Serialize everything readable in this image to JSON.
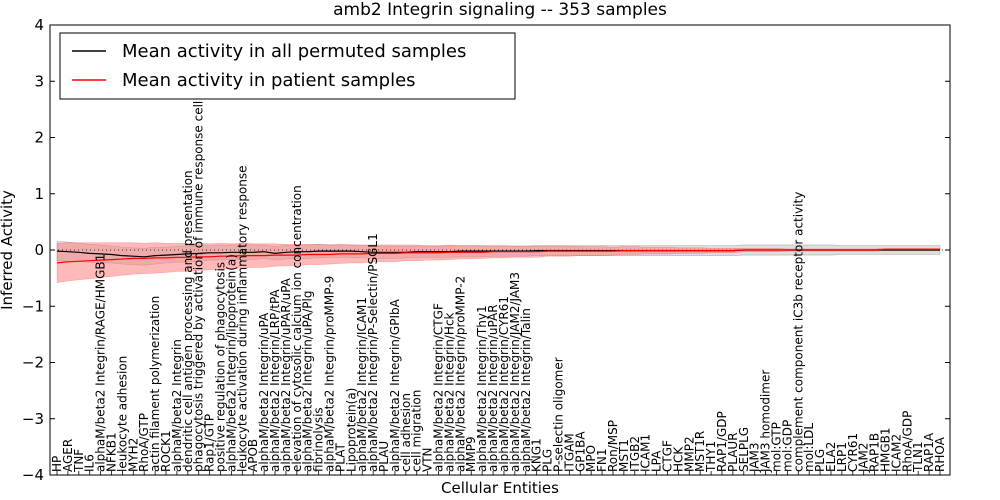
{
  "chart_data": {
    "type": "line",
    "title": "amb2 Integrin signaling -- 353 samples",
    "xlabel": "Cellular Entities",
    "ylabel": "Inferred Activity",
    "ylim": [
      -4,
      4
    ],
    "yticks": [
      "-4",
      "-3",
      "-2",
      "-1",
      "0",
      "1",
      "2",
      "3",
      "4"
    ],
    "grid": false,
    "legend_position": "top-left",
    "categories": [
      "HP",
      "AGER",
      "TNF",
      "IL6",
      "alphaM/beta2 Integrin/RAGE/HMGB1",
      "NFKB1",
      "leukocyte adhesion",
      "MYH2",
      "RhoA/GTP",
      "actin filament polymerization",
      "ROCK1",
      "alphaM/beta2 Integrin",
      "dendritic cell antigen processing and presentation",
      "phagocytosis triggered by activation of immune response cell surface",
      "Rap1/GTP",
      "positive regulation of phagocytosis",
      "alphaM/beta2 Integrin/lipoprotein(a)",
      "leukocyte activation during inflammatory response",
      "APOB",
      "alphaM/beta2 Integrin/uPA",
      "alphaM/beta2 Integrin/LRP/tPA",
      "alphaM/beta2 Integrin/uPAR/uPA",
      "elevation of cytosolic calcium ion concentration",
      "alphaM/beta2 Integrin/uPA/Plg",
      "fibrinolysis",
      "alphaM/beta2 Integrin/proMMP-9",
      "PLAT",
      "Lipoprotein(a)",
      "alphaM/beta2 Integrin/ICAM1",
      "alphaM/beta2 Integrin/P-Selectin/PSGL1",
      "PLAU",
      "alphaM/beta2 Integrin/GPIbA",
      "cell adhesion",
      "cell migration",
      "VTN",
      "alphaM/beta2 Integrin/CTGF",
      "alphaM/beta2 Integrin/Hck",
      "alphaM/beta2 Integrin/proMMP-2",
      "MMP9",
      "alphaM/beta2 Integrin/Thy1",
      "alphaM/beta2 Integrin/uPAR",
      "alphaM/beta2 Integrin/CYR61",
      "alphaM/beta2 Integrin/JAM2/JAM3",
      "alphaM/beta2 Integrin/Talin",
      "KNG1",
      "PLG",
      "P-selectin oligomer",
      "ITGAM",
      "GP1BA",
      "MPO",
      "FN1",
      "Ron/MSP",
      "MST1",
      "ITGB2",
      "ICAM1",
      "LPA",
      "CTGF",
      "HCK",
      "MMP2",
      "MST1R",
      "THY1",
      "RAP1/GDP",
      "PLAUR",
      "SELPLG",
      "JAM3",
      "JAM3 homodimer",
      "mol:GTP",
      "mol:GDP",
      "complement component iC3b receptor activity",
      "mol:LDL",
      "PLG",
      "ELA2",
      "LRP1",
      "CYR61",
      "JAM2",
      "RAP1B",
      "HMGB1",
      "ICAM2",
      "RhoA/GDP",
      "TLN1",
      "RAP1A",
      "RHOA"
    ],
    "series": [
      {
        "name": "Mean activity in all permuted samples",
        "color": "#000000",
        "band_color": "#c8c8c8",
        "values": [
          -0.02,
          -0.03,
          -0.04,
          -0.06,
          -0.07,
          -0.08,
          -0.1,
          -0.11,
          -0.12,
          -0.1,
          -0.09,
          -0.08,
          -0.07,
          -0.06,
          -0.05,
          -0.05,
          -0.04,
          -0.04,
          -0.04,
          -0.03,
          -0.06,
          -0.04,
          -0.03,
          -0.03,
          -0.02,
          -0.02,
          -0.02,
          -0.02,
          -0.03,
          -0.04,
          -0.04,
          -0.04,
          -0.04,
          -0.03,
          -0.03,
          -0.03,
          -0.03,
          -0.02,
          -0.02,
          -0.02,
          -0.02,
          -0.02,
          -0.02,
          -0.02,
          -0.01,
          -0.01,
          -0.01,
          -0.01,
          -0.01,
          -0.01,
          -0.01,
          -0.01,
          -0.01,
          -0.01,
          -0.01,
          -0.01,
          -0.01,
          -0.01,
          -0.01,
          -0.01,
          -0.01,
          -0.01,
          -0.01,
          0.0,
          0.0,
          0.0,
          0.0,
          0.0,
          0.0,
          0.0,
          0.0,
          0.0,
          0.0,
          0.0,
          0.0,
          0.0,
          0.0,
          0.0,
          0.0,
          0.0,
          0.0,
          0.0
        ],
        "band": [
          0.17,
          0.17,
          0.16,
          0.16,
          0.16,
          0.15,
          0.15,
          0.15,
          0.15,
          0.15,
          0.14,
          0.14,
          0.14,
          0.14,
          0.13,
          0.13,
          0.13,
          0.13,
          0.13,
          0.12,
          0.12,
          0.12,
          0.12,
          0.12,
          0.12,
          0.11,
          0.11,
          0.11,
          0.11,
          0.11,
          0.11,
          0.11,
          0.1,
          0.1,
          0.1,
          0.1,
          0.1,
          0.1,
          0.1,
          0.1,
          0.09,
          0.09,
          0.09,
          0.09,
          0.09,
          0.09,
          0.09,
          0.09,
          0.09,
          0.09,
          0.09,
          0.09,
          0.09,
          0.09,
          0.09,
          0.09,
          0.09,
          0.09,
          0.09,
          0.09,
          0.09,
          0.09,
          0.09,
          0.09,
          0.09,
          0.09,
          0.09,
          0.09,
          0.09,
          0.09,
          0.09,
          0.09,
          0.08,
          0.08,
          0.08,
          0.08,
          0.08,
          0.08,
          0.08,
          0.08,
          0.08,
          0.08
        ]
      },
      {
        "name": "Mean activity in patient samples",
        "color": "#ff0000",
        "band_color": "#ff8080",
        "values": [
          -0.23,
          -0.21,
          -0.2,
          -0.19,
          -0.18,
          -0.17,
          -0.16,
          -0.15,
          -0.15,
          -0.14,
          -0.14,
          -0.13,
          -0.13,
          -0.12,
          -0.12,
          -0.11,
          -0.11,
          -0.1,
          -0.1,
          -0.1,
          -0.09,
          -0.09,
          -0.09,
          -0.08,
          -0.08,
          -0.08,
          -0.07,
          -0.07,
          -0.07,
          -0.06,
          -0.06,
          -0.06,
          -0.05,
          -0.05,
          -0.05,
          -0.05,
          -0.04,
          -0.04,
          -0.04,
          -0.04,
          -0.03,
          -0.03,
          -0.03,
          -0.03,
          -0.03,
          -0.02,
          -0.02,
          -0.02,
          -0.02,
          -0.02,
          -0.02,
          -0.02,
          -0.01,
          -0.01,
          -0.01,
          -0.01,
          -0.01,
          -0.01,
          -0.01,
          -0.01,
          -0.01,
          -0.01,
          -0.01,
          0.0,
          0.0,
          0.0,
          0.0,
          0.0,
          0.0,
          0.0,
          0.0,
          0.0,
          0.0,
          0.0,
          0.0,
          0.0,
          0.01,
          0.01,
          0.01,
          0.01,
          0.01,
          0.01
        ],
        "band": [
          0.35,
          0.34,
          0.33,
          0.32,
          0.31,
          0.3,
          0.29,
          0.28,
          0.27,
          0.27,
          0.26,
          0.25,
          0.25,
          0.24,
          0.23,
          0.23,
          0.22,
          0.22,
          0.21,
          0.21,
          0.2,
          0.19,
          0.19,
          0.18,
          0.18,
          0.17,
          0.17,
          0.16,
          0.16,
          0.15,
          0.15,
          0.15,
          0.14,
          0.14,
          0.13,
          0.13,
          0.13,
          0.12,
          0.12,
          0.11,
          0.11,
          0.11,
          0.1,
          0.1,
          0.1,
          0.09,
          0.09,
          0.09,
          0.08,
          0.08,
          0.08,
          0.07,
          0.07,
          0.07,
          0.06,
          0.06,
          0.06,
          0.05,
          0.05,
          0.05,
          0.04,
          0.04,
          0.04,
          0.03,
          0.03,
          0.03,
          0.03,
          0.02,
          0.02,
          0.02,
          0.02,
          0.02,
          0.02,
          0.02,
          0.02,
          0.02,
          0.02,
          0.02,
          0.02,
          0.02,
          0.02,
          0.02
        ]
      }
    ]
  }
}
